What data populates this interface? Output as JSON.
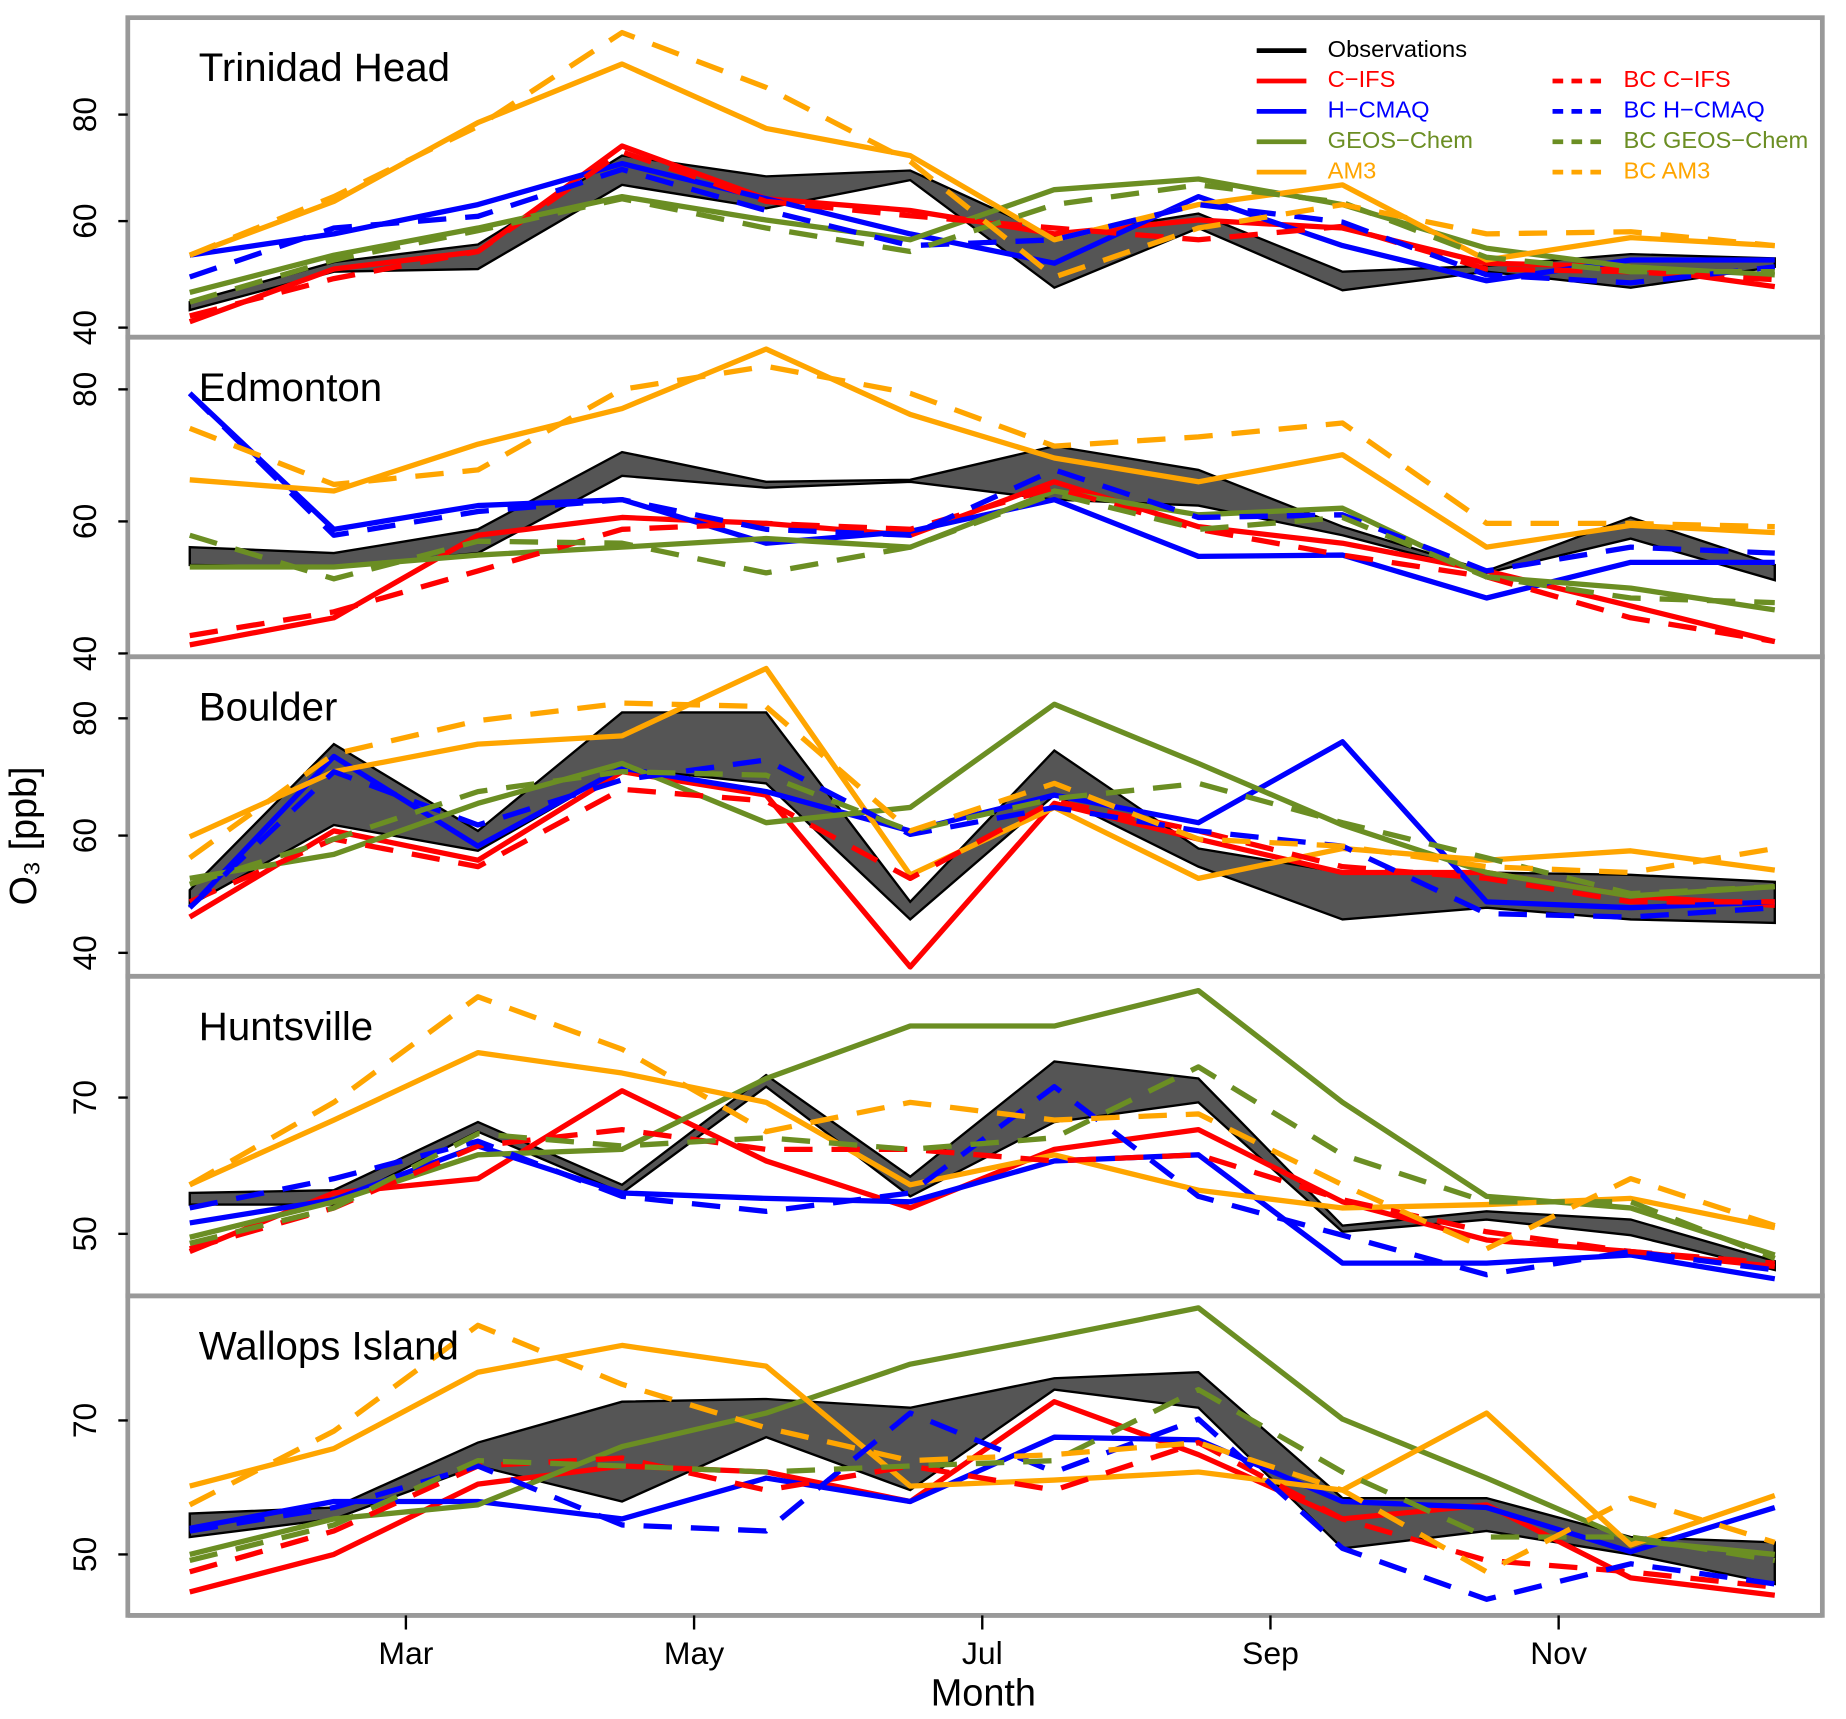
{
  "chart_data": {
    "type": "line",
    "xlabel": "Month",
    "ylabel": "O₃ [ppb]",
    "x": [
      1.5,
      2.5,
      3.5,
      4.5,
      5.5,
      6.5,
      7.5,
      8.5,
      9.5,
      10.5,
      11.5,
      12.5
    ],
    "xlim": [
      1.07,
      12.83
    ],
    "xticks": [
      {
        "value": 3,
        "label": "Mar"
      },
      {
        "value": 5,
        "label": "May"
      },
      {
        "value": 7,
        "label": "Jul"
      },
      {
        "value": 9,
        "label": "Sep"
      },
      {
        "value": 11,
        "label": "Nov"
      }
    ],
    "observations": {
      "name": "Observations",
      "color": "#000000",
      "fill": "#555555"
    },
    "series": [
      {
        "name": "C−IFS",
        "color": "#ff0000",
        "dashed": false
      },
      {
        "name": "H−CMAQ",
        "color": "#0000ff",
        "dashed": false
      },
      {
        "name": "GEOS−Chem",
        "color": "#6b8e23",
        "dashed": false
      },
      {
        "name": "AM3",
        "color": "#ffa500",
        "dashed": false
      },
      {
        "name": "BC C−IFS",
        "color": "#ff0000",
        "dashed": true
      },
      {
        "name": "BC H−CMAQ",
        "color": "#0000ff",
        "dashed": true
      },
      {
        "name": "BC GEOS−Chem",
        "color": "#6b8e23",
        "dashed": true
      },
      {
        "name": "BC AM3",
        "color": "#ffa500",
        "dashed": true
      }
    ],
    "panels": [
      {
        "title": "Trinidad Head",
        "ylim": [
          38.2,
          98.2
        ],
        "yticks": [
          40,
          60,
          80
        ],
        "obs_upper": [
          44.8,
          52.3,
          55.6,
          72.3,
          68.4,
          69.5,
          57.1,
          61.4,
          50.5,
          51.6,
          53.8,
          53.0
        ],
        "obs_lower": [
          43.3,
          50.5,
          51.0,
          66.8,
          62.4,
          67.7,
          47.5,
          58.7,
          47.0,
          50.5,
          47.5,
          51.4
        ],
        "values": [
          [
            41.1,
            51.0,
            54.3,
            74.1,
            64.2,
            62.0,
            57.6,
            60.2,
            58.7,
            52.1,
            51.4,
            47.7
          ],
          [
            53.6,
            57.6,
            63.1,
            70.8,
            64.2,
            57.6,
            52.1,
            64.6,
            55.4,
            48.8,
            52.7,
            52.7
          ],
          [
            46.6,
            53.6,
            58.7,
            64.6,
            60.2,
            56.5,
            65.9,
            67.9,
            63.1,
            54.9,
            51.4,
            49.9
          ],
          [
            53.6,
            63.7,
            78.5,
            89.5,
            77.4,
            72.3,
            56.5,
            63.1,
            66.8,
            52.7,
            56.9,
            55.4
          ],
          [
            42.2,
            49.2,
            54.3,
            73.0,
            63.7,
            61.0,
            58.7,
            56.5,
            59.0,
            51.0,
            50.5,
            49.0
          ],
          [
            49.5,
            58.7,
            60.9,
            69.7,
            62.0,
            55.4,
            56.5,
            63.1,
            59.8,
            49.9,
            48.4,
            51.4
          ],
          [
            44.8,
            52.7,
            58.2,
            64.2,
            58.7,
            54.3,
            63.1,
            66.8,
            63.5,
            53.2,
            50.5,
            50.5
          ],
          [
            53.6,
            64.6,
            77.8,
            95.4,
            85.1,
            71.2,
            49.5,
            58.7,
            63.1,
            57.6,
            58.0,
            55.4
          ]
        ]
      },
      {
        "title": "Edmonton",
        "ylim": [
          39.5,
          87.9
        ],
        "yticks": [
          40,
          60,
          80
        ],
        "obs_upper": [
          56.1,
          55.2,
          58.8,
          70.5,
          66.0,
          66.3,
          71.4,
          67.8,
          59.2,
          52.5,
          60.6,
          53.4
        ],
        "obs_lower": [
          53.4,
          53.1,
          55.2,
          66.9,
          65.1,
          66.0,
          63.3,
          62.4,
          57.9,
          52.2,
          57.4,
          51.1
        ],
        "values": [
          [
            41.3,
            45.4,
            57.9,
            60.6,
            59.7,
            57.9,
            66.0,
            59.2,
            56.7,
            52.5,
            47.2,
            41.8
          ],
          [
            79.4,
            58.8,
            62.4,
            63.3,
            56.7,
            58.5,
            63.3,
            54.7,
            54.9,
            48.4,
            53.8,
            53.8
          ],
          [
            53.1,
            53.1,
            54.9,
            56.1,
            57.4,
            56.1,
            64.6,
            61.0,
            62.0,
            51.6,
            49.9,
            46.6
          ],
          [
            66.3,
            64.6,
            71.7,
            77.1,
            86.1,
            76.2,
            69.6,
            66.0,
            70.1,
            56.1,
            59.4,
            58.3
          ],
          [
            42.7,
            46.3,
            52.5,
            58.8,
            59.7,
            58.8,
            65.1,
            58.8,
            54.9,
            51.6,
            45.4,
            41.8
          ],
          [
            79.4,
            57.9,
            61.5,
            63.3,
            58.8,
            57.9,
            67.8,
            60.6,
            61.0,
            52.5,
            56.1,
            55.2
          ],
          [
            57.9,
            51.3,
            57.0,
            56.7,
            52.2,
            56.1,
            64.2,
            58.8,
            60.6,
            51.6,
            48.4,
            47.7
          ],
          [
            74.1,
            65.6,
            67.8,
            80.0,
            83.5,
            79.4,
            71.4,
            72.8,
            74.9,
            59.7,
            59.7,
            59.2
          ]
        ]
      },
      {
        "title": "Boulder",
        "ylim": [
          36.0,
          90.5
        ],
        "yticks": [
          40,
          60,
          80
        ],
        "obs_upper": [
          50.7,
          75.6,
          60.8,
          81.0,
          81.0,
          48.7,
          74.5,
          57.8,
          53.7,
          53.7,
          53.3,
          52.1
        ],
        "obs_lower": [
          48.1,
          61.8,
          57.4,
          71.5,
          68.9,
          45.7,
          66.9,
          54.7,
          45.7,
          47.7,
          45.7,
          45.1
        ],
        "values": [
          [
            46.1,
            60.8,
            55.8,
            70.9,
            66.9,
            37.6,
            65.5,
            59.4,
            53.7,
            53.7,
            49.7,
            48.1
          ],
          [
            47.7,
            73.5,
            58.2,
            71.5,
            67.5,
            60.8,
            66.9,
            62.2,
            76.0,
            48.7,
            47.7,
            48.7
          ],
          [
            52.7,
            56.8,
            65.5,
            72.3,
            62.2,
            64.8,
            82.4,
            72.3,
            61.8,
            53.7,
            49.7,
            51.3
          ],
          [
            59.8,
            70.9,
            75.6,
            77.0,
            88.5,
            53.3,
            64.8,
            52.7,
            57.8,
            55.8,
            57.4,
            54.1
          ],
          [
            48.7,
            59.4,
            54.7,
            67.9,
            65.9,
            52.7,
            65.9,
            60.8,
            54.7,
            52.7,
            48.7,
            48.7
          ],
          [
            47.7,
            70.9,
            61.8,
            69.5,
            72.9,
            60.2,
            64.8,
            60.8,
            58.2,
            46.7,
            46.1,
            47.7
          ],
          [
            51.7,
            59.4,
            67.5,
            70.9,
            70.3,
            60.8,
            66.3,
            68.9,
            62.2,
            56.2,
            50.1,
            51.3
          ],
          [
            56.2,
            73.9,
            79.6,
            82.6,
            82.0,
            60.8,
            68.9,
            59.4,
            58.2,
            54.7,
            53.7,
            57.8
          ]
        ]
      },
      {
        "title": "Huntsville",
        "ylim": [
          40.9,
          87.8
        ],
        "yticks": [
          50,
          70
        ],
        "obs_upper": [
          56.0,
          56.4,
          66.4,
          57.2,
          73.3,
          58.4,
          75.3,
          72.8,
          51.2,
          53.3,
          52.1,
          46.0
        ],
        "obs_lower": [
          54.3,
          54.3,
          65.0,
          56.0,
          71.6,
          55.5,
          66.4,
          69.3,
          50.3,
          52.1,
          49.8,
          44.7
        ],
        "values": [
          [
            47.4,
            56.0,
            58.1,
            71.0,
            60.7,
            53.8,
            62.4,
            65.3,
            54.7,
            49.1,
            47.4,
            45.2
          ],
          [
            51.6,
            55.0,
            62.9,
            56.0,
            55.2,
            54.7,
            60.7,
            61.6,
            45.7,
            45.7,
            46.9,
            43.4
          ],
          [
            49.5,
            54.7,
            61.6,
            62.4,
            72.8,
            80.5,
            80.5,
            85.7,
            69.3,
            55.5,
            53.8,
            46.9
          ],
          [
            57.2,
            66.7,
            76.6,
            73.6,
            69.3,
            57.2,
            61.6,
            56.4,
            53.8,
            54.3,
            55.2,
            50.9
          ],
          [
            47.8,
            53.8,
            62.9,
            65.3,
            62.4,
            62.4,
            60.7,
            61.6,
            55.0,
            50.3,
            47.4,
            45.7
          ],
          [
            53.8,
            58.1,
            63.6,
            55.5,
            53.3,
            56.0,
            71.6,
            55.5,
            49.8,
            44.0,
            47.4,
            44.7
          ],
          [
            48.6,
            53.8,
            64.7,
            62.9,
            64.1,
            62.4,
            64.1,
            74.5,
            61.6,
            54.7,
            54.7,
            46.4
          ],
          [
            57.2,
            69.3,
            84.8,
            77.1,
            65.0,
            69.3,
            66.7,
            67.6,
            57.2,
            47.8,
            58.1,
            51.2
          ]
        ]
      },
      {
        "title": "Wallops Island",
        "ylim": [
          40.9,
          88.6
        ],
        "yticks": [
          50,
          70
        ],
        "obs_upper": [
          56.1,
          57.0,
          66.7,
          72.8,
          73.2,
          71.9,
          76.3,
          77.2,
          58.4,
          58.4,
          52.6,
          51.8
        ],
        "obs_lower": [
          52.6,
          55.3,
          63.2,
          57.9,
          67.5,
          59.6,
          74.6,
          71.9,
          50.9,
          53.5,
          50.0,
          45.6
        ],
        "values": [
          [
            44.4,
            50.0,
            60.5,
            63.2,
            62.3,
            57.9,
            72.8,
            64.9,
            55.3,
            57.4,
            46.5,
            43.9
          ],
          [
            53.9,
            57.9,
            57.9,
            55.3,
            61.4,
            57.9,
            67.5,
            67.1,
            57.9,
            57.0,
            50.4,
            57.0
          ],
          [
            50.0,
            55.3,
            57.4,
            66.1,
            71.1,
            78.4,
            82.5,
            86.8,
            70.2,
            61.4,
            52.1,
            50.0
          ],
          [
            60.2,
            65.8,
            77.2,
            81.2,
            78.1,
            60.2,
            61.1,
            62.3,
            59.6,
            71.1,
            51.4,
            58.8
          ],
          [
            47.4,
            53.5,
            63.2,
            64.4,
            59.6,
            63.2,
            59.6,
            66.7,
            55.3,
            49.1,
            47.4,
            45.1
          ],
          [
            53.5,
            57.0,
            63.2,
            54.4,
            53.5,
            71.1,
            62.3,
            70.2,
            50.9,
            43.3,
            48.6,
            45.6
          ],
          [
            49.1,
            54.4,
            64.0,
            63.2,
            62.3,
            63.2,
            64.0,
            74.6,
            62.3,
            52.6,
            52.6,
            49.1
          ],
          [
            57.4,
            68.4,
            84.2,
            75.4,
            68.9,
            64.0,
            64.9,
            66.7,
            59.6,
            47.4,
            58.4,
            51.8
          ]
        ]
      }
    ]
  }
}
